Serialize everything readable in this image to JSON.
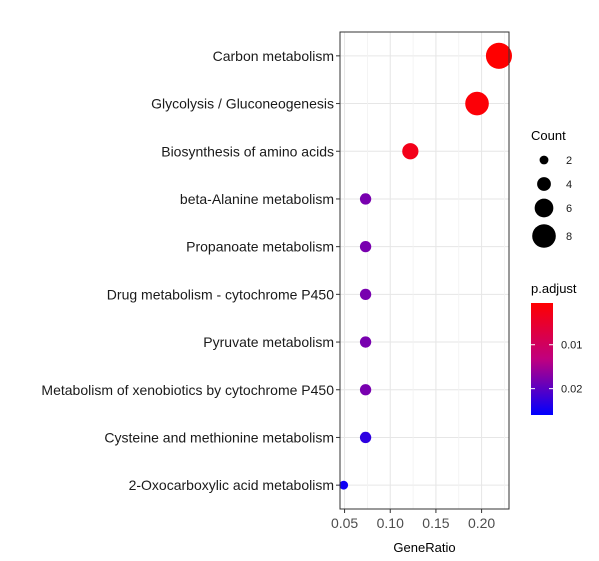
{
  "chart_data": {
    "type": "scatter",
    "xlabel": "GeneRatio",
    "ylabel": "",
    "xlim": [
      0.045,
      0.23
    ],
    "x_ticks": [
      0.05,
      0.1,
      0.15,
      0.2
    ],
    "x_tick_labels": [
      "0.05",
      "0.10",
      "0.15",
      "0.20"
    ],
    "grid": true,
    "categories": [
      "Carbon metabolism",
      "Glycolysis / Gluconeogenesis",
      "Biosynthesis of amino acids",
      "beta-Alanine metabolism",
      "Propanoate metabolism",
      "Drug metabolism - cytochrome P450",
      "Pyruvate metabolism",
      "Metabolism of xenobiotics by cytochrome P450",
      "Cysteine and methionine metabolism",
      "2-Oxocarboxylic acid metabolism"
    ],
    "points": [
      {
        "term": "Carbon metabolism",
        "gene_ratio": 0.219,
        "count": 9,
        "p_adjust": 0.0005
      },
      {
        "term": "Glycolysis / Gluconeogenesis",
        "gene_ratio": 0.195,
        "count": 8,
        "p_adjust": 0.0012
      },
      {
        "term": "Biosynthesis of amino acids",
        "gene_ratio": 0.122,
        "count": 5,
        "p_adjust": 0.003
      },
      {
        "term": "beta-Alanine metabolism",
        "gene_ratio": 0.073,
        "count": 3,
        "p_adjust": 0.018
      },
      {
        "term": "Propanoate metabolism",
        "gene_ratio": 0.073,
        "count": 3,
        "p_adjust": 0.018
      },
      {
        "term": "Drug metabolism - cytochrome P450",
        "gene_ratio": 0.073,
        "count": 3,
        "p_adjust": 0.018
      },
      {
        "term": "Pyruvate metabolism",
        "gene_ratio": 0.073,
        "count": 3,
        "p_adjust": 0.018
      },
      {
        "term": "Metabolism of xenobiotics by cytochrome P450",
        "gene_ratio": 0.073,
        "count": 3,
        "p_adjust": 0.018
      },
      {
        "term": "Cysteine and methionine metabolism",
        "gene_ratio": 0.073,
        "count": 3,
        "p_adjust": 0.023
      },
      {
        "term": "2-Oxocarboxylic acid metabolism",
        "gene_ratio": 0.049,
        "count": 2,
        "p_adjust": 0.025
      }
    ],
    "legend_count": {
      "title": "Count",
      "values": [
        2,
        4,
        6,
        8
      ],
      "labels": [
        "2",
        "4",
        "6",
        "8"
      ]
    },
    "legend_padjust": {
      "title": "p.adjust",
      "range": [
        0.0005,
        0.026
      ],
      "ticks": [
        0.01,
        0.02
      ],
      "tick_labels": [
        "0.01",
        "0.02"
      ],
      "color_low": "#FF0000",
      "color_high": "#0000FF"
    }
  }
}
